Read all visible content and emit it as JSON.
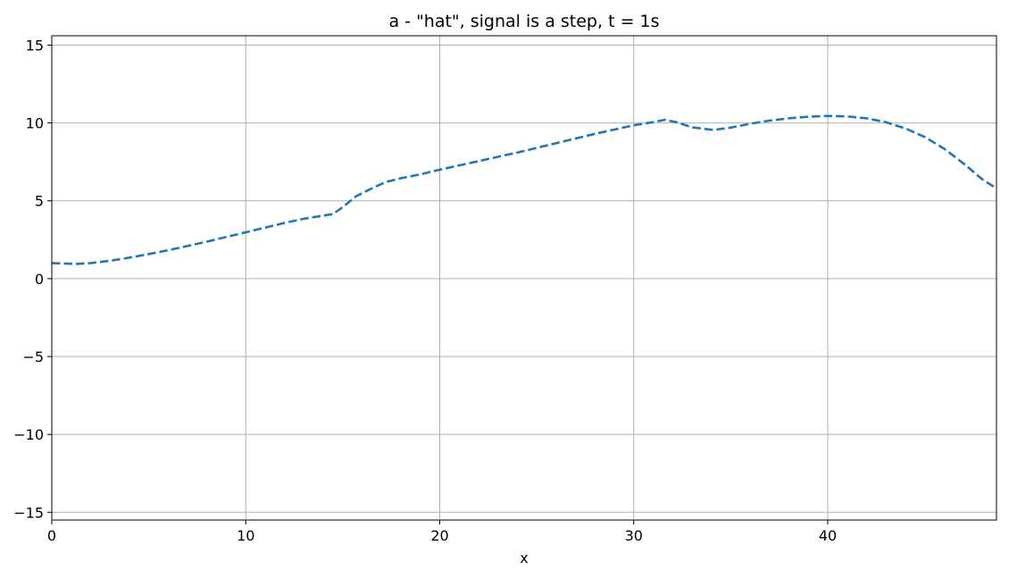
{
  "chart_data": {
    "type": "line",
    "title": "a - \"hat\", signal is a step, t = 1s",
    "xlabel": "x",
    "ylabel": "",
    "xlim": [
      0,
      48.7
    ],
    "ylim": [
      -15.5,
      15.6
    ],
    "xticks": [
      0,
      10,
      20,
      30,
      40
    ],
    "xtick_labels": [
      "0",
      "10",
      "20",
      "30",
      "40"
    ],
    "yticks": [
      -15,
      -10,
      -5,
      0,
      5,
      10,
      15
    ],
    "ytick_labels": [
      "−15",
      "−10",
      "−5",
      "0",
      "5",
      "10",
      "15"
    ],
    "grid": true,
    "legend": "none",
    "series": [
      {
        "style": "dashed",
        "color": "#1f77b4",
        "x": [
          0,
          0.5,
          1.3,
          2.0,
          3.0,
          4.0,
          5.0,
          6.0,
          7.0,
          8.0,
          9.0,
          10.0,
          11.0,
          12.0,
          13.0,
          14.0,
          14.5,
          15.0,
          15.7,
          16.5,
          17.2,
          18.0,
          19.0,
          20.0,
          22.0,
          24.0,
          26.0,
          28.0,
          30.0,
          31.0,
          31.6,
          32.2,
          33.0,
          34.1,
          35.0,
          36.0,
          37.0,
          38.0,
          39.0,
          40.0,
          41.0,
          42.0,
          43.0,
          44.0,
          45.0,
          46.0,
          47.0,
          48.0,
          48.7
        ],
        "y": [
          1.0,
          0.98,
          0.95,
          1.0,
          1.15,
          1.35,
          1.58,
          1.83,
          2.1,
          2.38,
          2.68,
          2.98,
          3.28,
          3.58,
          3.85,
          4.05,
          4.15,
          4.6,
          5.3,
          5.8,
          6.2,
          6.45,
          6.7,
          7.0,
          7.55,
          8.1,
          8.7,
          9.3,
          9.85,
          10.05,
          10.2,
          10.05,
          9.72,
          9.55,
          9.7,
          9.95,
          10.15,
          10.3,
          10.4,
          10.45,
          10.42,
          10.3,
          10.05,
          9.65,
          9.1,
          8.35,
          7.4,
          6.35,
          5.8
        ]
      }
    ]
  }
}
